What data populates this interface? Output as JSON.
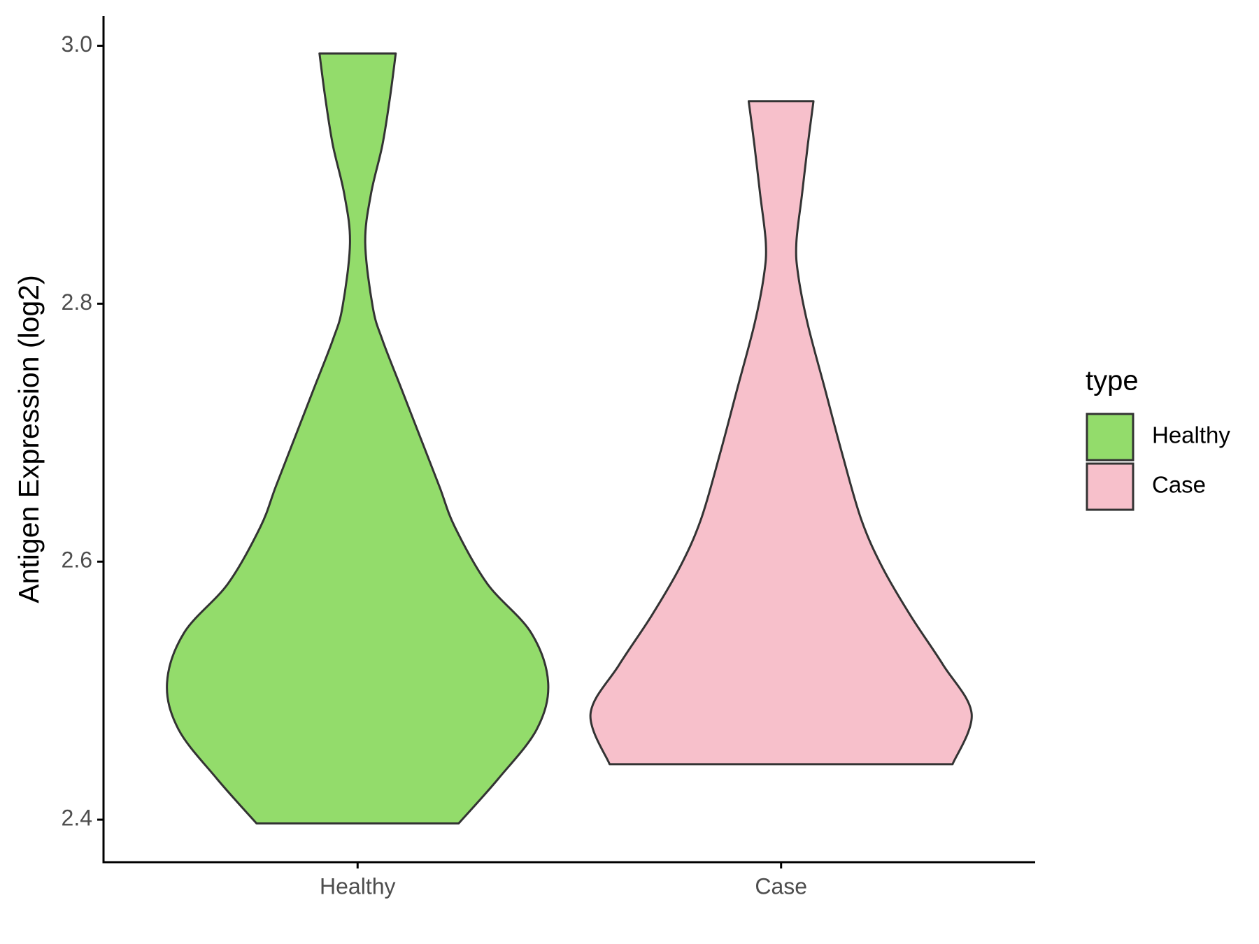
{
  "chart_data": {
    "type": "violin",
    "y_label": "Antigen Expression (log2)",
    "categories": [
      "Healthy",
      "Case"
    ],
    "legend_title": "type",
    "legend_position": "right",
    "ylim": [
      2.367,
      3.023
    ],
    "yticks": [
      {
        "value": 2.4,
        "label": "2.4"
      },
      {
        "value": 2.6,
        "label": "2.6"
      },
      {
        "value": 2.8,
        "label": "2.8"
      },
      {
        "value": 3.0,
        "label": "3.0"
      }
    ],
    "series": [
      {
        "name": "Healthy",
        "color": "#93dc6b",
        "y": [
          2.397,
          2.432,
          2.47,
          2.506,
          2.545,
          2.583,
          2.627,
          2.658,
          2.696,
          2.734,
          2.772,
          2.797,
          2.847,
          2.885,
          2.923,
          2.96,
          2.994
        ],
        "density": [
          0.53,
          0.74,
          0.94,
          1.0,
          0.91,
          0.68,
          0.51,
          0.43,
          0.33,
          0.23,
          0.13,
          0.08,
          0.04,
          0.07,
          0.13,
          0.17,
          0.2
        ]
      },
      {
        "name": "Case",
        "color": "#f7c0cb",
        "y": [
          2.443,
          2.482,
          2.52,
          2.558,
          2.596,
          2.633,
          2.684,
          2.734,
          2.784,
          2.822,
          2.847,
          2.885,
          2.923,
          2.957
        ],
        "density": [
          0.9,
          1.0,
          0.85,
          0.68,
          0.53,
          0.42,
          0.32,
          0.23,
          0.14,
          0.09,
          0.08,
          0.11,
          0.14,
          0.17
        ]
      }
    ]
  }
}
